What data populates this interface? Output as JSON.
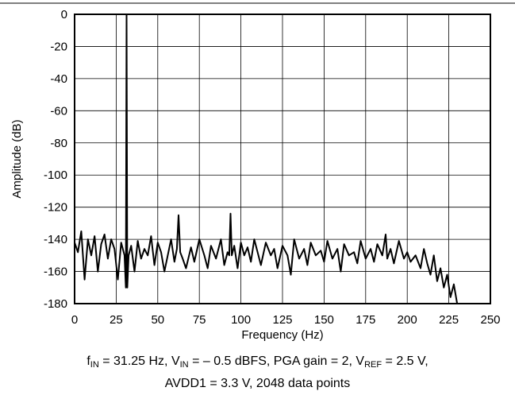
{
  "chart_data": {
    "type": "line",
    "xlabel": "Frequency (Hz)",
    "ylabel": "Amplitude (dB)",
    "xlim": [
      0,
      250
    ],
    "ylim": [
      -180,
      0
    ],
    "xticks": [
      0,
      25,
      50,
      75,
      100,
      125,
      150,
      175,
      200,
      225,
      250
    ],
    "yticks": [
      0,
      -20,
      -40,
      -60,
      -80,
      -100,
      -120,
      -140,
      -160,
      -180
    ],
    "grid": true,
    "series": [
      {
        "color": "#000000",
        "x": [
          0,
          2,
          4,
          6,
          8,
          10,
          12,
          14,
          16,
          18,
          20,
          22,
          24,
          26,
          28,
          30,
          30.8,
          31.25,
          31.7,
          32.5,
          34,
          36,
          38,
          40,
          42,
          44,
          46,
          48,
          50,
          52,
          54,
          56,
          58,
          60,
          61.5,
          62.5,
          63.5,
          65,
          67,
          70,
          72,
          75,
          78,
          80,
          82,
          85,
          88,
          90,
          92,
          93,
          93.75,
          94.5,
          96,
          98,
          100,
          102,
          104,
          106,
          108,
          110,
          112,
          115,
          118,
          120,
          122,
          125,
          128,
          130,
          132,
          135,
          138,
          140,
          142,
          145,
          148,
          150,
          152,
          155,
          158,
          160,
          162,
          165,
          168,
          170,
          172,
          175,
          178,
          180,
          182,
          185,
          187,
          188,
          190,
          192,
          195,
          198,
          200,
          202,
          205,
          208,
          210,
          212,
          214,
          216,
          218,
          220,
          222,
          224,
          226,
          228,
          230,
          232
        ],
        "values": [
          -142,
          -148,
          -135,
          -165,
          -140,
          -150,
          -138,
          -160,
          -143,
          -137,
          -152,
          -140,
          -146,
          -165,
          -142,
          -150,
          -170,
          0,
          -170,
          -150,
          -144,
          -160,
          -141,
          -152,
          -146,
          -150,
          -138,
          -156,
          -142,
          -148,
          -160,
          -150,
          -140,
          -154,
          -146,
          -125,
          -148,
          -152,
          -158,
          -145,
          -154,
          -140,
          -150,
          -158,
          -144,
          -152,
          -140,
          -156,
          -148,
          -150,
          -124,
          -150,
          -144,
          -158,
          -142,
          -150,
          -145,
          -154,
          -140,
          -148,
          -156,
          -142,
          -150,
          -146,
          -158,
          -144,
          -150,
          -162,
          -140,
          -152,
          -146,
          -156,
          -142,
          -150,
          -147,
          -154,
          -141,
          -152,
          -146,
          -160,
          -143,
          -150,
          -148,
          -155,
          -141,
          -152,
          -146,
          -154,
          -143,
          -150,
          -137,
          -152,
          -146,
          -155,
          -141,
          -152,
          -148,
          -154,
          -150,
          -158,
          -146,
          -155,
          -162,
          -150,
          -166,
          -158,
          -170,
          -162,
          -176,
          -168,
          -180,
          -180
        ]
      }
    ]
  },
  "caption": {
    "line1": [
      {
        "text": "f"
      },
      {
        "sub": "IN"
      },
      {
        "text": " = 31.25 Hz, V"
      },
      {
        "sub": "IN"
      },
      {
        "text": " = – 0.5 dBFS, PGA gain = 2, V"
      },
      {
        "sub": "REF"
      },
      {
        "text": " = 2.5 V,"
      }
    ],
    "line2": "AVDD1 = 3.3 V, 2048 data points"
  }
}
